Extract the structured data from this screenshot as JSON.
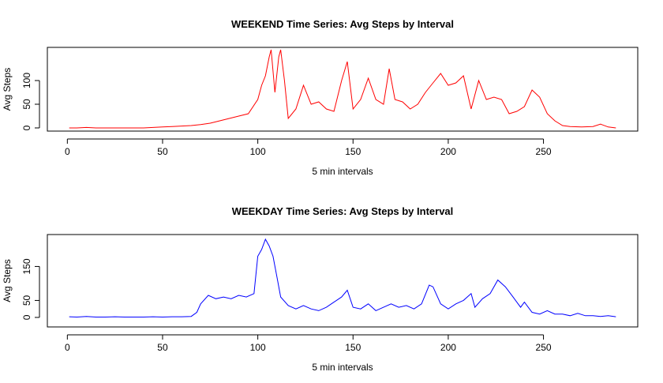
{
  "chart_data": [
    {
      "type": "line",
      "title": "WEEKEND Time Series: Avg Steps by Interval",
      "xlabel": "5 min intervals",
      "ylabel": "Avg Steps",
      "color": "#ff0000",
      "x": [
        1,
        5,
        10,
        15,
        20,
        25,
        30,
        35,
        40,
        45,
        50,
        55,
        60,
        65,
        70,
        75,
        80,
        85,
        90,
        95,
        100,
        102,
        104,
        106,
        107,
        109,
        111,
        112,
        114,
        116,
        120,
        124,
        128,
        132,
        136,
        140,
        144,
        147,
        150,
        154,
        158,
        162,
        166,
        169,
        172,
        176,
        180,
        184,
        188,
        192,
        196,
        200,
        204,
        208,
        212,
        216,
        220,
        224,
        228,
        232,
        236,
        240,
        244,
        248,
        252,
        256,
        260,
        264,
        270,
        276,
        280,
        284,
        288
      ],
      "values": [
        0,
        0,
        1,
        0,
        0,
        0,
        0,
        0,
        0,
        1,
        2,
        3,
        4,
        5,
        7,
        10,
        15,
        20,
        25,
        30,
        60,
        90,
        110,
        150,
        165,
        75,
        150,
        165,
        100,
        20,
        40,
        90,
        50,
        55,
        40,
        35,
        100,
        140,
        40,
        60,
        105,
        60,
        50,
        125,
        60,
        55,
        40,
        50,
        75,
        95,
        115,
        90,
        95,
        110,
        40,
        100,
        60,
        65,
        60,
        30,
        35,
        45,
        80,
        65,
        30,
        15,
        5,
        3,
        2,
        3,
        8,
        2,
        0
      ],
      "xlim": [
        -10.5,
        299.5
      ],
      "ylim": [
        -6.7,
        170
      ],
      "xticks": [
        0,
        50,
        100,
        150,
        200,
        250
      ],
      "yticks": [
        0,
        50,
        100
      ]
    },
    {
      "type": "line",
      "title": "WEEKDAY Time Series: Avg Steps by Interval",
      "xlabel": "5 min intervals",
      "ylabel": "Avg Steps",
      "color": "#0000ff",
      "x": [
        1,
        5,
        10,
        15,
        20,
        25,
        30,
        35,
        40,
        45,
        50,
        55,
        60,
        65,
        68,
        70,
        74,
        78,
        82,
        86,
        90,
        94,
        98,
        100,
        102,
        104,
        106,
        108,
        110,
        112,
        116,
        120,
        124,
        128,
        132,
        136,
        140,
        144,
        147,
        150,
        154,
        158,
        162,
        166,
        170,
        174,
        178,
        182,
        186,
        190,
        192,
        196,
        200,
        204,
        208,
        212,
        214,
        218,
        222,
        226,
        230,
        234,
        238,
        240,
        244,
        248,
        252,
        256,
        260,
        264,
        268,
        272,
        276,
        280,
        284,
        288
      ],
      "values": [
        2,
        1,
        3,
        1,
        1,
        2,
        1,
        1,
        1,
        2,
        1,
        2,
        2,
        3,
        15,
        40,
        65,
        55,
        60,
        55,
        65,
        60,
        70,
        180,
        200,
        230,
        210,
        180,
        120,
        60,
        35,
        25,
        35,
        25,
        20,
        30,
        45,
        60,
        80,
        30,
        25,
        40,
        20,
        30,
        40,
        30,
        35,
        25,
        40,
        95,
        90,
        40,
        25,
        40,
        50,
        70,
        30,
        55,
        70,
        110,
        90,
        60,
        30,
        45,
        15,
        10,
        20,
        10,
        10,
        5,
        12,
        5,
        5,
        3,
        5,
        2
      ],
      "xlim": [
        -10.5,
        299.5
      ],
      "ylim": [
        -28,
        244
      ],
      "xticks": [
        0,
        50,
        100,
        150,
        200,
        250
      ],
      "yticks": [
        0,
        50,
        150
      ]
    }
  ]
}
